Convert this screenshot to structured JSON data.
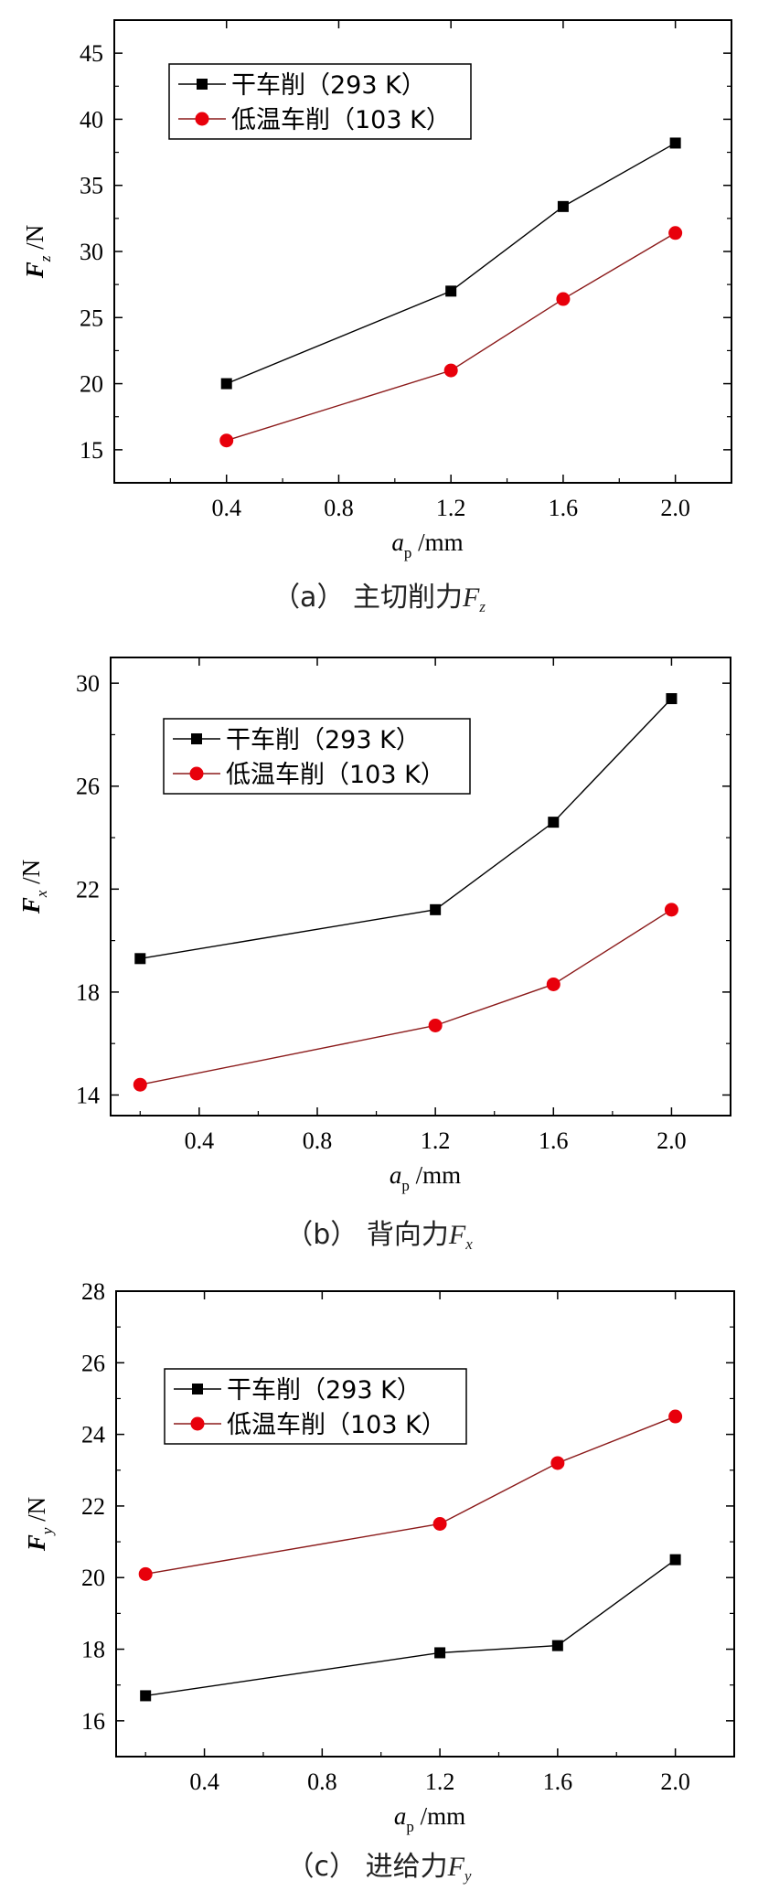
{
  "chart_data": [
    {
      "type": "line",
      "caption": "（a） 主切削力",
      "caption_symbol": "F",
      "caption_sub": "z",
      "ylabel_main": "F",
      "ylabel_sub": "z",
      "ylabel_unit": " /N",
      "xlabel_main": "a",
      "xlabel_sub": "p",
      "xlabel_unit": " /mm",
      "xlim": [
        0.0,
        2.2
      ],
      "ylim": [
        12.5,
        47.5
      ],
      "xticks": [
        0.4,
        0.8,
        1.2,
        1.6,
        2.0
      ],
      "xtick_labels": [
        "0.4",
        "0.8",
        "1.2",
        "1.6",
        "2.0"
      ],
      "yticks": [
        15,
        20,
        25,
        30,
        35,
        40,
        45
      ],
      "ytick_labels": [
        "15",
        "20",
        "25",
        "30",
        "35",
        "40",
        "45"
      ],
      "legend_position": "top-left",
      "series": [
        {
          "name": "干车削（293 K）",
          "marker": "square",
          "color": "#000000",
          "x": [
            0.4,
            1.2,
            1.6,
            2.0
          ],
          "values": [
            20.0,
            27.0,
            33.4,
            38.2
          ]
        },
        {
          "name": "低温车削（103 K）",
          "marker": "circle",
          "color": "#e8000b",
          "x": [
            0.4,
            1.2,
            1.6,
            2.0
          ],
          "values": [
            15.7,
            21.0,
            26.4,
            31.4
          ]
        }
      ]
    },
    {
      "type": "line",
      "caption": "（b） 背向力",
      "caption_symbol": "F",
      "caption_sub": "x",
      "ylabel_main": "F",
      "ylabel_sub": "x",
      "ylabel_unit": " /N",
      "xlabel_main": "a",
      "xlabel_sub": "p",
      "xlabel_unit": " /mm",
      "xlim": [
        0.1,
        2.2
      ],
      "ylim": [
        13.2,
        31.0
      ],
      "xticks": [
        0.4,
        0.8,
        1.2,
        1.6,
        2.0
      ],
      "xtick_labels": [
        "0.4",
        "0.8",
        "1.2",
        "1.6",
        "2.0"
      ],
      "yticks": [
        14,
        18,
        22,
        26,
        30
      ],
      "ytick_labels": [
        "14",
        "18",
        "22",
        "26",
        "30"
      ],
      "legend_position": "top-left",
      "series": [
        {
          "name": "干车削（293 K）",
          "marker": "square",
          "color": "#000000",
          "x": [
            0.2,
            1.2,
            1.6,
            2.0
          ],
          "values": [
            19.3,
            21.2,
            24.6,
            29.4
          ]
        },
        {
          "name": "低温车削（103 K）",
          "marker": "circle",
          "color": "#e8000b",
          "x": [
            0.2,
            1.2,
            1.6,
            2.0
          ],
          "values": [
            14.4,
            16.7,
            18.3,
            21.2
          ]
        }
      ]
    },
    {
      "type": "line",
      "caption": "（c） 进给力",
      "caption_symbol": "F",
      "caption_sub": "y",
      "ylabel_main": "F",
      "ylabel_sub": "y",
      "ylabel_unit": " /N",
      "xlabel_main": "a",
      "xlabel_sub": "p",
      "xlabel_unit": " /mm",
      "xlim": [
        0.1,
        2.2
      ],
      "ylim": [
        15.0,
        28.0
      ],
      "xticks": [
        0.4,
        0.8,
        1.2,
        1.6,
        2.0
      ],
      "xtick_labels": [
        "0.4",
        "0.8",
        "1.2",
        "1.6",
        "2.0"
      ],
      "yticks": [
        16,
        18,
        20,
        22,
        24,
        26,
        28
      ],
      "ytick_labels": [
        "16",
        "18",
        "20",
        "22",
        "24",
        "26",
        "28"
      ],
      "legend_position": "top-left",
      "series": [
        {
          "name": "干车削（293 K）",
          "marker": "square",
          "color": "#000000",
          "x": [
            0.2,
            1.2,
            1.6,
            2.0
          ],
          "values": [
            16.7,
            17.9,
            18.1,
            20.5
          ]
        },
        {
          "name": "低温车削（103 K）",
          "marker": "circle",
          "color": "#e8000b",
          "x": [
            0.2,
            1.2,
            1.6,
            2.0
          ],
          "values": [
            20.1,
            21.5,
            23.2,
            24.5
          ]
        }
      ]
    }
  ]
}
